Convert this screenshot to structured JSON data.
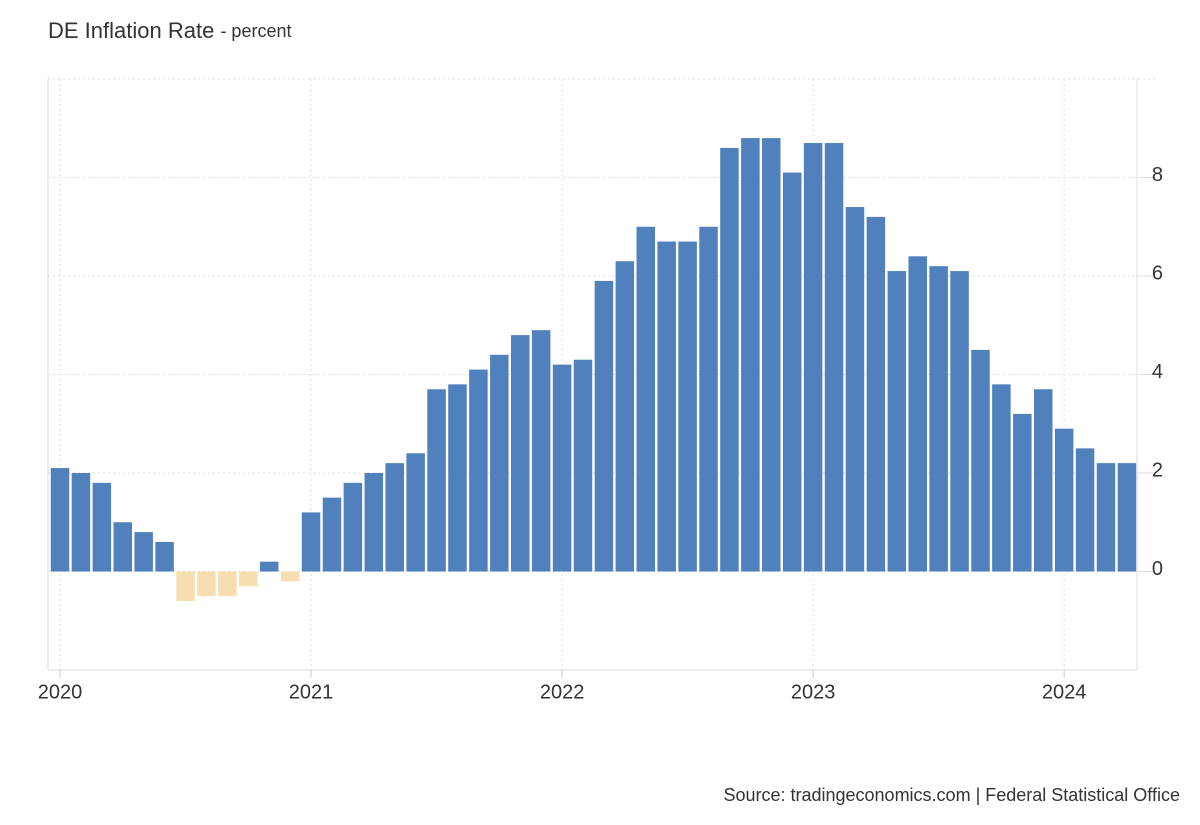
{
  "chart_data": {
    "type": "bar",
    "title": "DE Inflation Rate",
    "subtitle": "- percent",
    "source": "Source: tradingeconomics.com | Federal Statistical Office",
    "x": [
      "2020-01",
      "2020-02",
      "2020-03",
      "2020-04",
      "2020-05",
      "2020-06",
      "2020-07",
      "2020-08",
      "2020-09",
      "2020-10",
      "2020-11",
      "2020-12",
      "2021-01",
      "2021-02",
      "2021-03",
      "2021-04",
      "2021-05",
      "2021-06",
      "2021-07",
      "2021-08",
      "2021-09",
      "2021-10",
      "2021-11",
      "2021-12",
      "2022-01",
      "2022-02",
      "2022-03",
      "2022-04",
      "2022-05",
      "2022-06",
      "2022-07",
      "2022-08",
      "2022-09",
      "2022-10",
      "2022-11",
      "2022-12",
      "2023-01",
      "2023-02",
      "2023-03",
      "2023-04",
      "2023-05",
      "2023-06",
      "2023-07",
      "2023-08",
      "2023-09",
      "2023-10",
      "2023-11",
      "2023-12",
      "2024-01",
      "2024-02",
      "2024-03",
      "2024-04"
    ],
    "values": [
      2.1,
      2.0,
      1.8,
      1.0,
      0.8,
      0.6,
      -0.6,
      -0.5,
      -0.5,
      -0.3,
      0.2,
      -0.2,
      1.2,
      1.5,
      1.8,
      2.0,
      2.2,
      2.4,
      3.7,
      3.8,
      4.1,
      4.4,
      4.8,
      4.9,
      4.2,
      4.3,
      5.9,
      6.3,
      7.0,
      6.7,
      6.7,
      7.0,
      8.6,
      8.8,
      8.8,
      8.1,
      8.7,
      8.7,
      7.4,
      7.2,
      6.1,
      6.4,
      6.2,
      6.1,
      4.5,
      3.8,
      3.2,
      3.7,
      2.9,
      2.5,
      2.2,
      2.2
    ],
    "color": "#5081bd",
    "negative_color": "#f6deb0",
    "xticks": [
      2020,
      2021,
      2022,
      2023,
      2024
    ],
    "ylim": [
      -2,
      10
    ],
    "yticks": [
      0,
      2,
      4,
      6,
      8
    ],
    "grid": true
  }
}
